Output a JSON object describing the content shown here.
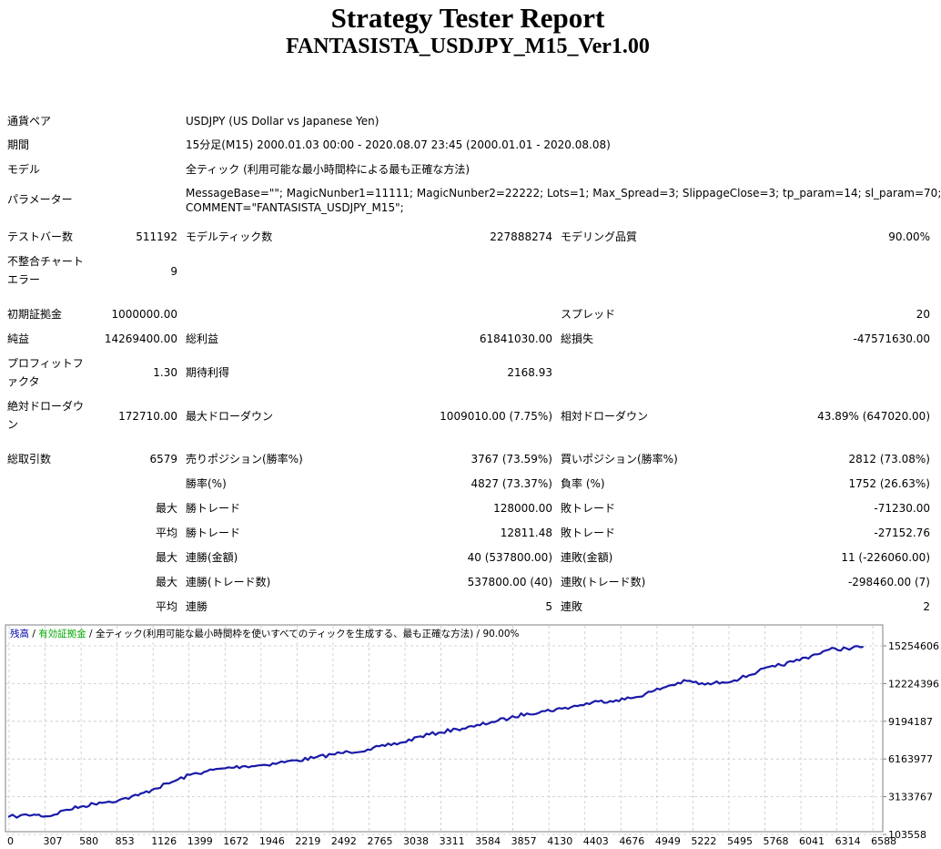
{
  "report": {
    "title": "Strategy Tester Report",
    "subtitle": "FANTASISTA_USDJPY_M15_Ver1.00"
  },
  "settings": {
    "pair_label": "通貨ペア",
    "pair_value": "USDJPY (US Dollar vs Japanese Yen)",
    "period_label": "期間",
    "period_value": "15分足(M15) 2000.01.03 00:00 - 2020.08.07 23:45 (2000.01.01 - 2020.08.08)",
    "model_label": "モデル",
    "model_value": "全ティック (利用可能な最小時間枠による最も正確な方法)",
    "params_label": "パラメーター",
    "params_line1": "MessageBase=\"\"; MagicNunber1=11111; MagicNunber2=22222; Lots=1; Max_Spread=3; SlippageClose=3; tp_param=14; sl_param=70;",
    "params_line2": "COMMENT=\"FANTASISTA_USDJPY_M15\";"
  },
  "stats": {
    "bars_label": "テストバー数",
    "bars_value": "511192",
    "ticks_label": "モデルティック数",
    "ticks_value": "227888274",
    "quality_label": "モデリング品質",
    "quality_value": "90.00%",
    "mismatch_label_1": "不整合チャート",
    "mismatch_label_2": "エラー",
    "mismatch_value": "9",
    "deposit_label": "初期証拠金",
    "deposit_value": "1000000.00",
    "spread_label": "スプレッド",
    "spread_value": "20",
    "net_label": "純益",
    "net_value": "14269400.00",
    "gross_profit_label": "総利益",
    "gross_profit_value": "61841030.00",
    "gross_loss_label": "総損失",
    "gross_loss_value": "-47571630.00",
    "pf_label_1": "プロフィットフ",
    "pf_label_2": "ァクタ",
    "pf_value": "1.30",
    "expected_label": "期待利得",
    "expected_value": "2168.93",
    "abs_dd_label_1": "絶対ドローダウ",
    "abs_dd_label_2": "ン",
    "abs_dd_value": "172710.00",
    "max_dd_label": "最大ドローダウン",
    "max_dd_value": "1009010.00 (7.75%)",
    "rel_dd_label": "相対ドローダウン",
    "rel_dd_value": "43.89% (647020.00)"
  },
  "trades": {
    "total_label": "総取引数",
    "total_value": "6579",
    "short_label": "売りポジション(勝率%)",
    "short_value": "3767 (73.59%)",
    "long_label": "買いポジション(勝率%)",
    "long_value": "2812 (73.08%)",
    "win_rate_label": "勝率(%)",
    "win_rate_value": "4827 (73.37%)",
    "loss_rate_label": "負率 (%)",
    "loss_rate_value": "1752 (26.63%)",
    "max_label": "最大",
    "avg_label": "平均",
    "win_trade_label": "勝トレード",
    "loss_trade_label": "敗トレード",
    "max_win_value": "128000.00",
    "max_loss_value": "-71230.00",
    "avg_win_value": "12811.48",
    "avg_loss_value": "-27152.76",
    "consec_wins_money_label": "連勝(金額)",
    "consec_wins_money_value": "40 (537800.00)",
    "consec_losses_money_label": "連敗(金額)",
    "consec_losses_money_value": "11 (-226060.00)",
    "consec_wins_count_label": "連勝(トレード数)",
    "consec_wins_count_value": "537800.00 (40)",
    "consec_losses_count_label": "連敗(トレード数)",
    "consec_losses_count_value": "-298460.00 (7)",
    "consec_wins_label": "連勝",
    "consec_wins_value": "5",
    "consec_losses_label": "連敗",
    "consec_losses_value": "2"
  },
  "chart_data": {
    "type": "line",
    "legend": {
      "balance": "残高",
      "sep1": " / ",
      "equity": "有効証拠金",
      "sep2": " / ",
      "model": "全ティック(利用可能な最小時間枠を使いすべてのティックを生成する、最も正確な方法)",
      "sep3": " / ",
      "quality": "90.00%"
    },
    "colors": {
      "balance": "#0000aa",
      "equity": "#00aa00",
      "line": "#1a1aa8",
      "grid": "#c8c8c8"
    },
    "x_ticks": [
      "0",
      "307",
      "580",
      "853",
      "1126",
      "1399",
      "1672",
      "1946",
      "2219",
      "2492",
      "2765",
      "3038",
      "3311",
      "3584",
      "3857",
      "4130",
      "4403",
      "4676",
      "4949",
      "5222",
      "5495",
      "5768",
      "6041",
      "6314",
      "6588"
    ],
    "y_ticks": [
      "15254606",
      "12224396",
      "9194187",
      "6163977",
      "3133767",
      "103558"
    ],
    "xlim": [
      0,
      6700
    ],
    "ylim": [
      103558,
      16300000
    ],
    "series": [
      {
        "x": [
          0,
          200,
          307,
          450,
          580,
          700,
          853,
          1000,
          1126,
          1260,
          1399,
          1530,
          1672,
          1800,
          1946,
          2080,
          2219,
          2350,
          2492,
          2620,
          2765,
          2900,
          3038,
          3170,
          3311,
          3450,
          3584,
          3720,
          3857,
          3990,
          4130,
          4260,
          4403,
          4540,
          4676,
          4810,
          4949,
          5080,
          5222,
          5360,
          5495,
          5630,
          5768,
          5900,
          6041,
          6180,
          6314,
          6450,
          6579
        ],
        "y": [
          1100000,
          1300000,
          1150000,
          1700000,
          2000000,
          2300000,
          2500000,
          2900000,
          3450000,
          4000000,
          4600000,
          4900000,
          5150000,
          5300000,
          5400000,
          5600000,
          5800000,
          6000000,
          6300000,
          6500000,
          6700000,
          7000000,
          7300000,
          7800000,
          8100000,
          8400000,
          8600000,
          9000000,
          9300000,
          9700000,
          9900000,
          10100000,
          10400000,
          10700000,
          10800000,
          11000000,
          11500000,
          12000000,
          12400000,
          12100000,
          12300000,
          12600000,
          13200000,
          13600000,
          14000000,
          14500000,
          15000000,
          15100000,
          15250000
        ]
      }
    ]
  }
}
